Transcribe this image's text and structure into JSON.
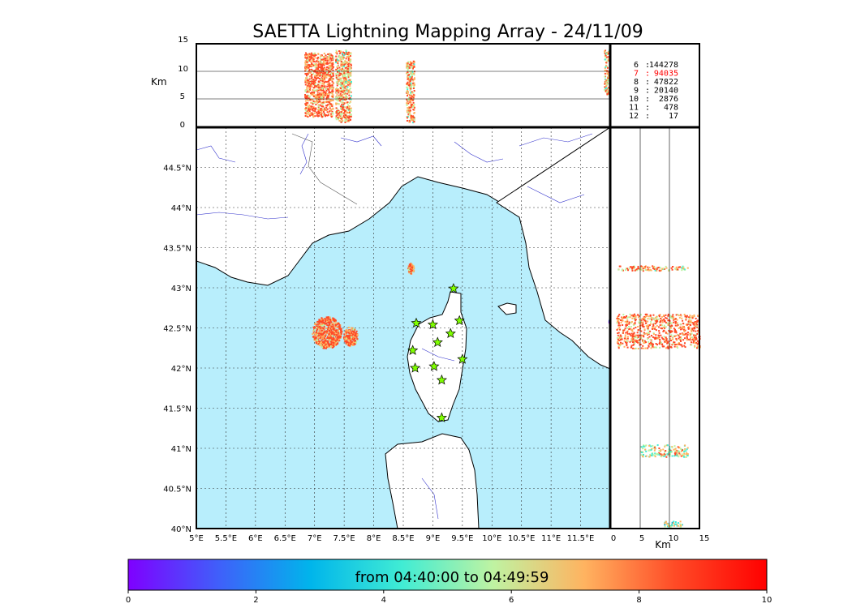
{
  "chart_data": {
    "title": "SAETTA Lightning Mapping Array - 24/11/09",
    "type": "scatter",
    "map": {
      "lon_range": [
        5.0,
        12.0
      ],
      "lat_range": [
        40.0,
        45.0
      ],
      "lon_ticks": [
        "5°E",
        "5.5°E",
        "6°E",
        "6.5°E",
        "7°E",
        "7.5°E",
        "8°E",
        "8.5°E",
        "9°E",
        "9.5°E",
        "10°E",
        "10.5°E",
        "11°E",
        "11.5°E"
      ],
      "lat_ticks": [
        "40°N",
        "40.5°N",
        "41°N",
        "41.5°N",
        "42°N",
        "42.5°N",
        "43°N",
        "43.5°N",
        "44°N",
        "44.5°N"
      ],
      "grid": true,
      "sea_color": "#b8eefc"
    },
    "altitude_panel": {
      "ylabel": "Km",
      "yticks": [
        "0",
        "5",
        "10",
        "15"
      ],
      "ylim": [
        0,
        15
      ]
    },
    "side_panel": {
      "xlabel": "Km",
      "xticks": [
        "0",
        "5",
        "10",
        "15"
      ],
      "xlim": [
        0,
        15
      ]
    },
    "stations_stats": [
      {
        "stations": "6",
        "count": "144278",
        "highlight": false
      },
      {
        "stations": "7",
        "count": "94035",
        "highlight": true
      },
      {
        "stations": "8",
        "count": "47822",
        "highlight": false
      },
      {
        "stations": "9",
        "count": "20140",
        "highlight": false
      },
      {
        "stations": "10",
        "count": "2876",
        "highlight": false
      },
      {
        "stations": "11",
        "count": "478",
        "highlight": false
      },
      {
        "stations": "12",
        "count": "17",
        "highlight": false
      }
    ],
    "colorbar": {
      "label": "from 04:40:00 to 04:49:59",
      "ticks": [
        "0",
        "2",
        "4",
        "6",
        "8",
        "10"
      ],
      "range": [
        0,
        10
      ],
      "colors": [
        "#7f00ff",
        "#3f60fa",
        "#00b5eb",
        "#40ecd4",
        "#bff3a2",
        "#ffb360",
        "#ff4a26",
        "#ff0000"
      ]
    },
    "sensor_stations": [
      {
        "lon": 9.35,
        "lat": 42.99
      },
      {
        "lon": 8.72,
        "lat": 42.56
      },
      {
        "lon": 9.0,
        "lat": 42.54
      },
      {
        "lon": 9.45,
        "lat": 42.59
      },
      {
        "lon": 9.3,
        "lat": 42.43
      },
      {
        "lon": 9.08,
        "lat": 42.32
      },
      {
        "lon": 8.66,
        "lat": 42.22
      },
      {
        "lon": 9.5,
        "lat": 42.11
      },
      {
        "lon": 8.7,
        "lat": 42.0
      },
      {
        "lon": 9.02,
        "lat": 42.02
      },
      {
        "lon": 9.15,
        "lat": 41.85
      },
      {
        "lon": 9.15,
        "lat": 41.38
      }
    ],
    "lightning_clusters": [
      {
        "name": "west",
        "lon": 7.2,
        "lat": 42.45,
        "rlon": 0.25,
        "rlat": 0.2,
        "color_value": 9
      },
      {
        "name": "west-east",
        "lon": 7.6,
        "lat": 42.4,
        "rlon": 0.12,
        "rlat": 0.12,
        "color_value": 9
      },
      {
        "name": "north",
        "lon": 8.62,
        "lat": 43.25,
        "rlon": 0.05,
        "rlat": 0.07,
        "color_value": 8
      },
      {
        "name": "east-edge",
        "lon": 12.0,
        "lat": 42.58,
        "rlon": 0.03,
        "rlat": 0.05,
        "color_value": 2
      }
    ]
  }
}
